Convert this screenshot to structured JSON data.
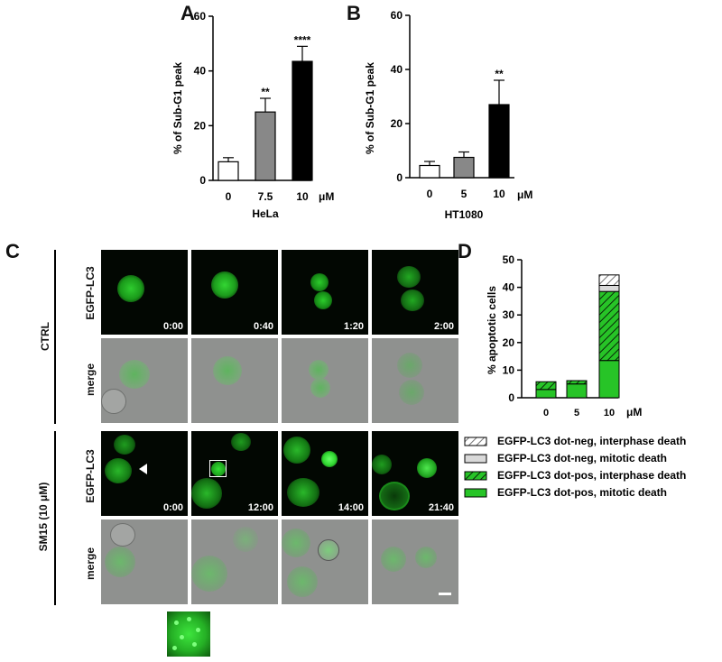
{
  "panels": {
    "A": "A",
    "B": "B",
    "C": "C",
    "D": "D"
  },
  "chart_data": [
    {
      "id": "A",
      "type": "bar",
      "categories": [
        "0",
        "7.5",
        "10"
      ],
      "values": [
        6.8,
        25,
        43.5
      ],
      "errors": [
        1.5,
        5,
        5.5
      ],
      "significance": [
        "",
        "**",
        "****"
      ],
      "bar_colors": [
        "#ffffff",
        "#888888",
        "#000000"
      ],
      "ylabel": "% of Sub-G1 peak",
      "xlabel": "HeLa",
      "unit": "μM",
      "ylim": [
        0,
        60
      ],
      "yticks": [
        "0",
        "20",
        "40",
        "60"
      ]
    },
    {
      "id": "B",
      "type": "bar",
      "categories": [
        "0",
        "5",
        "10"
      ],
      "values": [
        4.5,
        7.5,
        27
      ],
      "errors": [
        1.5,
        2,
        9
      ],
      "significance": [
        "",
        "",
        "**"
      ],
      "bar_colors": [
        "#ffffff",
        "#888888",
        "#000000"
      ],
      "ylabel": "% of Sub-G1 peak",
      "xlabel": "HT1080",
      "unit": "μM",
      "ylim": [
        0,
        60
      ],
      "yticks": [
        "0",
        "20",
        "40",
        "60"
      ]
    },
    {
      "id": "D",
      "type": "bar",
      "stacked": true,
      "categories": [
        "0",
        "5",
        "10"
      ],
      "unit": "μM",
      "ylabel": "% apoptotic cells",
      "ylim": [
        0,
        50
      ],
      "yticks": [
        "0",
        "10",
        "20",
        "30",
        "40",
        "50"
      ],
      "series": [
        {
          "name": "EGFP-LC3 dot-pos, mitotic death",
          "values": [
            3.0,
            5.0,
            13.5
          ],
          "color": "#27c427",
          "pattern": "solid"
        },
        {
          "name": "EGFP-LC3 dot-pos, interphase death",
          "values": [
            2.8,
            1.2,
            25.0
          ],
          "color": "#27c427",
          "pattern": "hatch"
        },
        {
          "name": "EGFP-LC3 dot-neg, mitotic death",
          "values": [
            0,
            0,
            2.2
          ],
          "color": "#d9d9d9",
          "pattern": "solid"
        },
        {
          "name": "EGFP-LC3 dot-neg, interphase death",
          "values": [
            0,
            0,
            3.8
          ],
          "color": "#ffffff",
          "pattern": "hatch"
        }
      ],
      "legend_order": [
        3,
        2,
        1,
        0
      ]
    }
  ],
  "panel_c": {
    "group_labels": [
      "CTRL",
      "SM15 (10 μM)"
    ],
    "row_labels": [
      "EGFP-LC3",
      "merge",
      "EGFP-LC3",
      "merge"
    ],
    "ctrl_times": [
      "0:00",
      "0:40",
      "1:20",
      "2:00"
    ],
    "sm15_times": [
      "0:00",
      "12:00",
      "14:00",
      "21:40"
    ],
    "colors": {
      "gfp": "#2fd62f",
      "dark": "#020702",
      "brightfield": "#8f918f"
    }
  }
}
